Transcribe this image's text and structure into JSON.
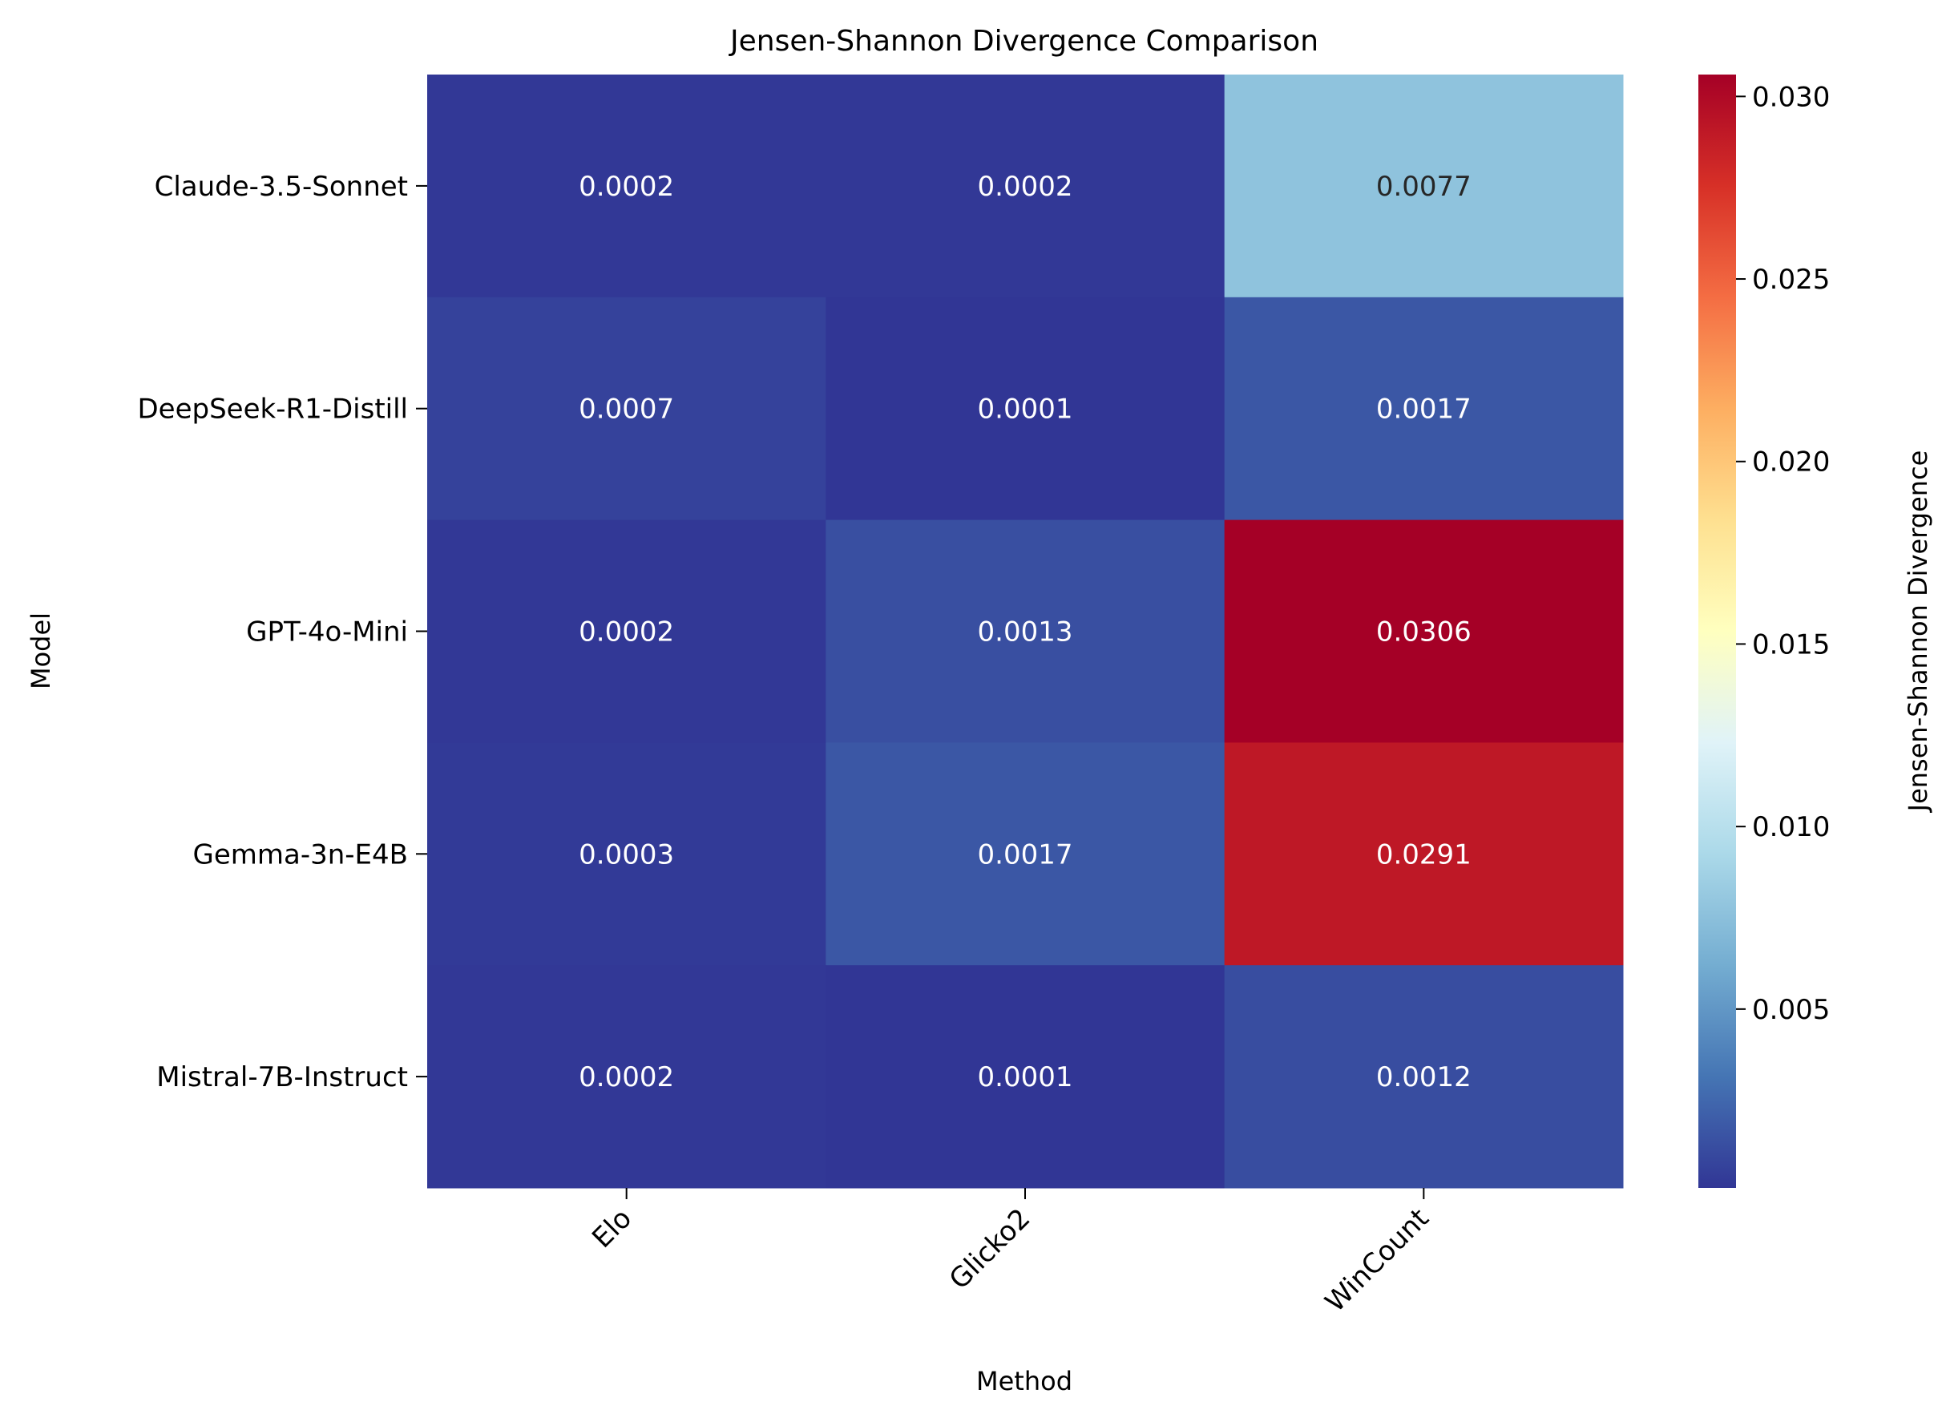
{
  "chart_data": {
    "type": "heatmap",
    "title": "Jensen-Shannon Divergence Comparison",
    "xlabel": "Method",
    "ylabel": "Model",
    "x_categories": [
      "Elo",
      "Glicko2",
      "WinCount"
    ],
    "y_categories": [
      "Claude-3.5-Sonnet",
      "DeepSeek-R1-Distill",
      "GPT-4o-Mini",
      "Gemma-3n-E4B",
      "Mistral-7B-Instruct"
    ],
    "values": [
      [
        0.0002,
        0.0002,
        0.0077
      ],
      [
        0.0007,
        0.0001,
        0.0017
      ],
      [
        0.0002,
        0.0013,
        0.0306
      ],
      [
        0.0003,
        0.0017,
        0.0291
      ],
      [
        0.0002,
        0.0001,
        0.0012
      ]
    ],
    "value_labels": [
      [
        "0.0002",
        "0.0002",
        "0.0077"
      ],
      [
        "0.0007",
        "0.0001",
        "0.0017"
      ],
      [
        "0.0002",
        "0.0013",
        "0.0306"
      ],
      [
        "0.0003",
        "0.0017",
        "0.0291"
      ],
      [
        "0.0002",
        "0.0001",
        "0.0012"
      ]
    ],
    "colormap": "RdYlBu_r",
    "color_range": [
      0.0001,
      0.0306
    ],
    "colorbar": {
      "label": "Jensen-Shannon Divergence",
      "ticks": [
        0.005,
        0.01,
        0.015,
        0.02,
        0.025,
        0.03
      ],
      "tick_labels": [
        "0.005",
        "0.010",
        "0.015",
        "0.020",
        "0.025",
        "0.030"
      ]
    },
    "annotation_colors": {
      "light": "#ffffff",
      "dark": "#262626"
    },
    "grid": false
  }
}
